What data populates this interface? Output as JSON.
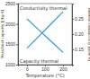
{
  "chart_data": {
    "type": "line",
    "x_label": "Temperature (°C)",
    "y_label": "Mass heat capacity [J/kg·K]",
    "y2_label": "Thermal conductivity [W/m·K]",
    "x": [
      0,
      50,
      100,
      150,
      200
    ],
    "series": [
      {
        "name": "Conductivity thermal",
        "color": "#3a9ad9",
        "axis": "y2",
        "values": [
          0.25,
          0.2225,
          0.195,
          0.1675,
          0.14
        ]
      },
      {
        "name": "Capacity thermal",
        "color": "#3a9ad9",
        "values": [
          1400,
          1625,
          1850,
          2075,
          2300
        ]
      }
    ],
    "xlim": [
      -50,
      250
    ],
    "xticks": [
      0,
      100,
      200
    ],
    "ylim": [
      1000,
      2500
    ],
    "yticks": [
      1000,
      1500,
      2000,
      2500
    ],
    "y2lim": [
      0.1,
      0.3
    ],
    "y2ticks": [
      {
        "value": 0.15,
        "label": "0.15"
      },
      {
        "value": 0.2,
        "label": "0.20"
      },
      {
        "value": 0.25,
        "label": "0.25"
      }
    ],
    "grid": false
  }
}
